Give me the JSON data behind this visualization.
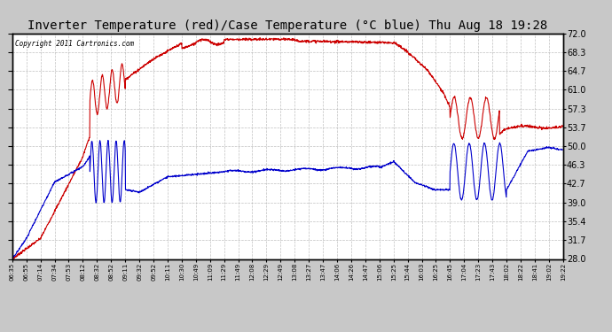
{
  "title": "Inverter Temperature (red)/Case Temperature (°C blue) Thu Aug 18 19:28",
  "copyright": "Copyright 2011 Cartronics.com",
  "ylabel_right_ticks": [
    28.0,
    31.7,
    35.4,
    39.0,
    42.7,
    46.3,
    50.0,
    53.7,
    57.3,
    61.0,
    64.7,
    68.3,
    72.0
  ],
  "ylim": [
    28.0,
    72.0
  ],
  "background_color": "#c8c8c8",
  "plot_bg_color": "#ffffff",
  "grid_color": "#b0b0b0",
  "red_color": "#cc0000",
  "blue_color": "#0000cc",
  "title_fontsize": 10,
  "x_tick_labels": [
    "06:35",
    "06:55",
    "07:14",
    "07:34",
    "07:53",
    "08:12",
    "08:32",
    "08:52",
    "09:11",
    "09:32",
    "09:52",
    "10:11",
    "10:30",
    "10:49",
    "11:09",
    "11:29",
    "11:49",
    "12:08",
    "12:29",
    "12:49",
    "13:08",
    "13:27",
    "13:47",
    "14:06",
    "14:26",
    "14:47",
    "15:06",
    "15:25",
    "15:44",
    "16:03",
    "16:25",
    "16:45",
    "17:04",
    "17:23",
    "17:43",
    "18:02",
    "18:22",
    "18:41",
    "19:02",
    "19:22"
  ]
}
